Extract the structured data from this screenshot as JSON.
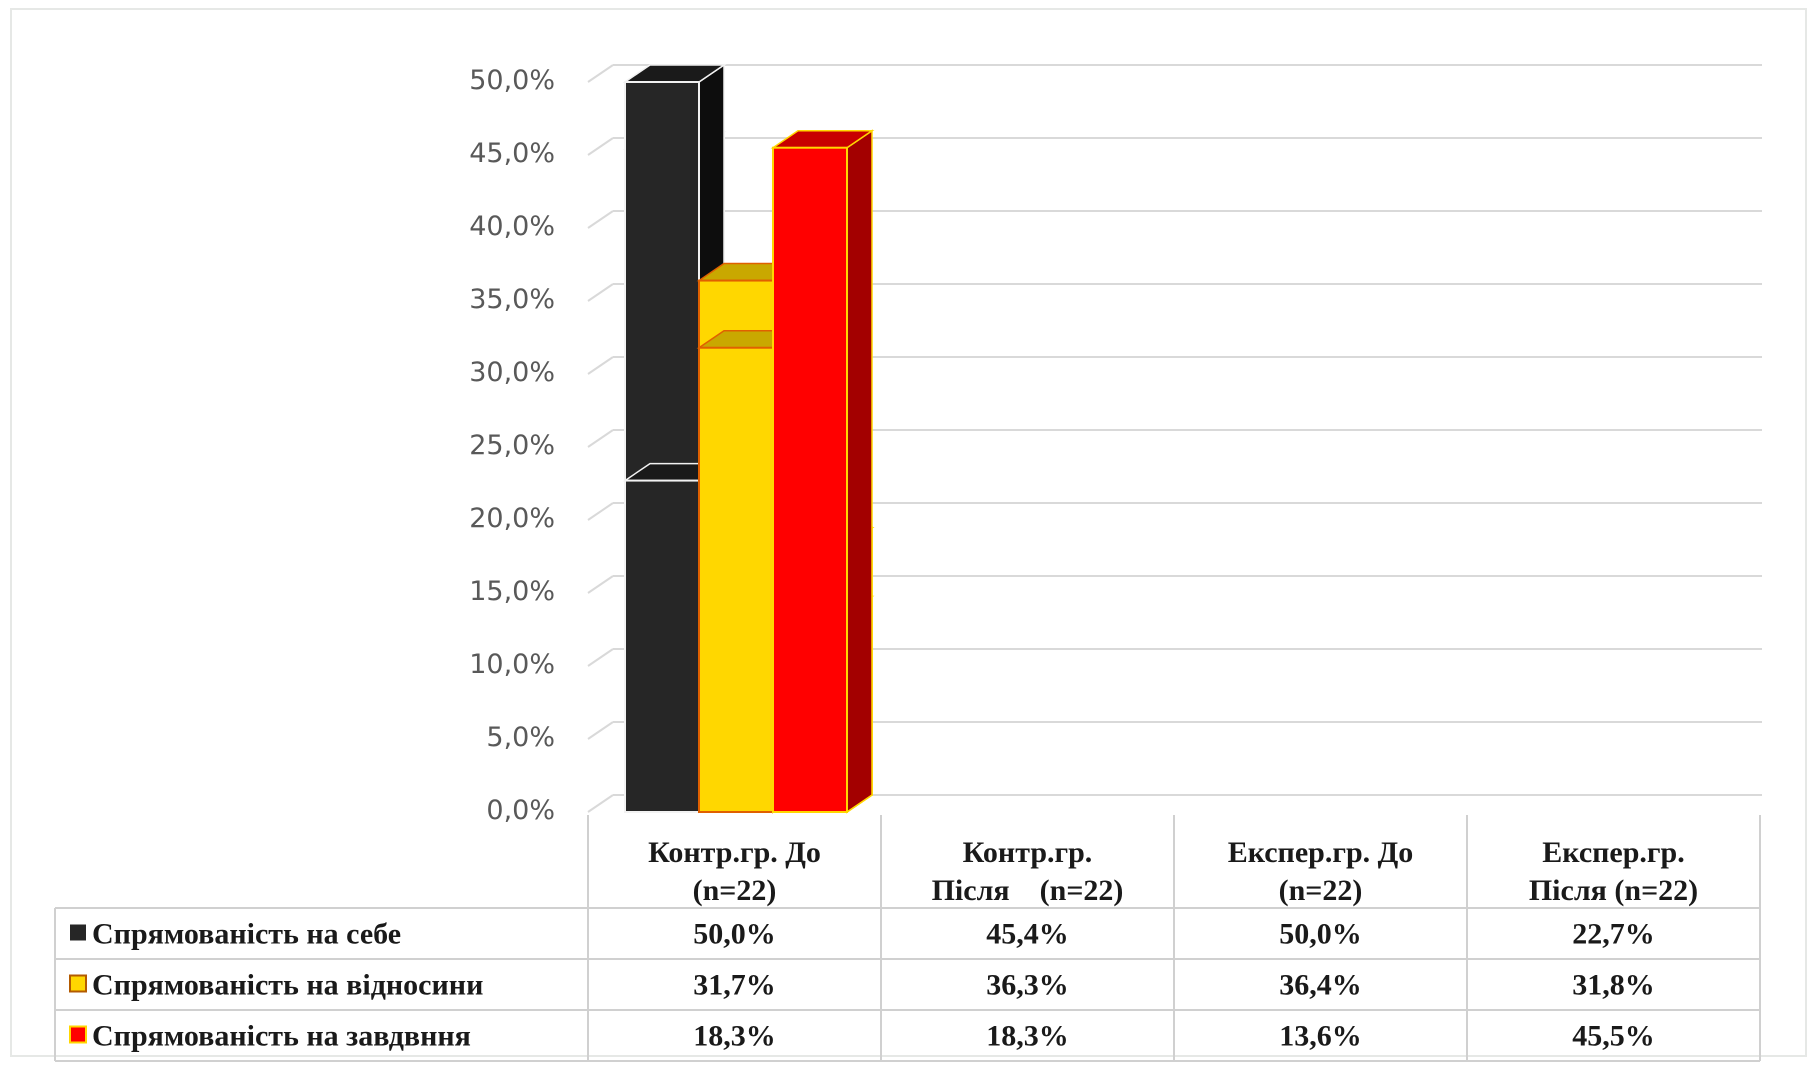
{
  "chart_data": {
    "type": "bar",
    "style": "3d-clustered-column-with-data-table",
    "categories": [
      [
        "Контр.гр. До",
        "(n=22)"
      ],
      [
        "Контр.гр.",
        "Після    (n=22)"
      ],
      [
        "Експер.гр. До",
        "(n=22)"
      ],
      [
        "Експер.гр.",
        "Після (n=22)"
      ]
    ],
    "series": [
      {
        "name": "Спрямованість на себе",
        "values": [
          50.0,
          45.4,
          50.0,
          22.7
        ],
        "labels": [
          "50,0%",
          "45,4%",
          "50,0%",
          "22,7%"
        ],
        "color": "#262626",
        "side": "#0d0d0d",
        "top": "#1a1a1a",
        "edge": "#f2f2f2"
      },
      {
        "name": "Спрямованість на відносини",
        "values": [
          31.7,
          36.3,
          36.4,
          31.8
        ],
        "labels": [
          "31,7%",
          "36,3%",
          "36,4%",
          "31,8%"
        ],
        "color": "#ffd700",
        "side": "#a68b00",
        "top": "#c9a800",
        "edge": "#e06000"
      },
      {
        "name": "Спрямованість на завдвння",
        "values": [
          18.3,
          18.3,
          13.6,
          45.5
        ],
        "labels": [
          "18,3%",
          "18,3%",
          "13,6%",
          "45,5%"
        ],
        "color": "#ff0000",
        "side": "#a30000",
        "top": "#c80000",
        "edge": "#ffd700"
      }
    ],
    "ylim": [
      0,
      50
    ],
    "ytick_values": [
      0,
      5,
      10,
      15,
      20,
      25,
      30,
      35,
      40,
      45,
      50
    ],
    "ytick_labels": [
      "0,0%",
      "5,0%",
      "10,0%",
      "15,0%",
      "20,0%",
      "25,0%",
      "30,0%",
      "35,0%",
      "40,0%",
      "45,0%",
      "50,0%"
    ],
    "grid": true,
    "legend": "data-table"
  }
}
